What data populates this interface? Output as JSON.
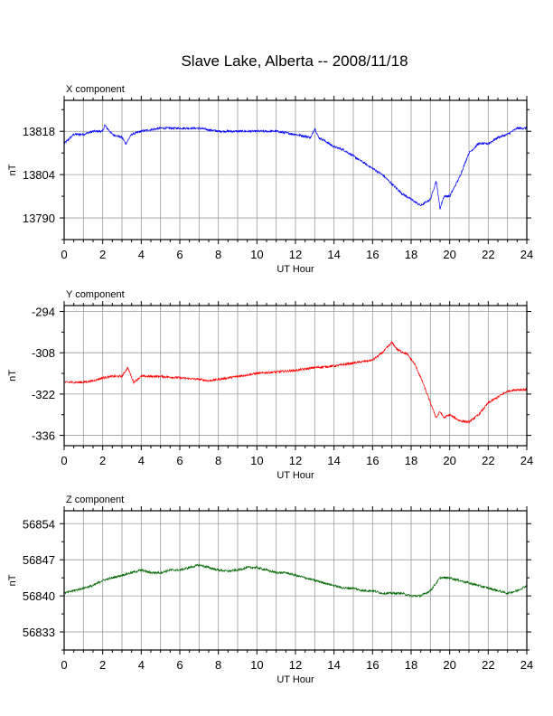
{
  "title": "Slave Lake, Alberta -- 2008/11/18",
  "chart_data": [
    {
      "type": "line",
      "panel_label": "X component",
      "xlabel": "UT Hour",
      "ylabel": "nT",
      "xlim": [
        0,
        24
      ],
      "ylim": [
        13783,
        13828
      ],
      "xticks": [
        0,
        2,
        4,
        6,
        8,
        10,
        12,
        14,
        16,
        18,
        20,
        22,
        24
      ],
      "yticks": [
        13790,
        13804,
        13818
      ],
      "grid": true,
      "color": "#0000ff",
      "series": [
        {
          "x": [
            0,
            0.5,
            1.0,
            1.5,
            2.0,
            2.1,
            2.5,
            3.0,
            3.2,
            3.5,
            4.0,
            5,
            6,
            7,
            8,
            9,
            10,
            11,
            12,
            12.8,
            13.0,
            13.2,
            13.5,
            14,
            14.5,
            15,
            15.5,
            16,
            16.5,
            17,
            17.5,
            18,
            18.5,
            19.0,
            19.3,
            19.5,
            19.7,
            20.0,
            20.5,
            21,
            21.5,
            22,
            22.5,
            23,
            23.5,
            24
          ],
          "y": [
            13814,
            13817,
            13817,
            13818,
            13818,
            13820,
            13817,
            13816,
            13814,
            13817,
            13818,
            13819,
            13819,
            13819,
            13818,
            13818,
            13818,
            13818,
            13817,
            13816,
            13819,
            13816,
            13815,
            13813,
            13812,
            13810,
            13808,
            13806,
            13804,
            13801,
            13798,
            13796,
            13794,
            13796,
            13802,
            13793,
            13797,
            13797,
            13803,
            13811,
            13814,
            13814,
            13816,
            13817,
            13819,
            13819
          ]
        }
      ]
    },
    {
      "type": "line",
      "panel_label": "Y component",
      "xlabel": "UT Hour",
      "ylabel": "nT",
      "xlim": [
        0,
        24
      ],
      "ylim": [
        -339.5,
        -292
      ],
      "xticks": [
        0,
        2,
        4,
        6,
        8,
        10,
        12,
        14,
        16,
        18,
        20,
        22,
        24
      ],
      "yticks": [
        -336,
        -322,
        -308,
        -294
      ],
      "grid": true,
      "color": "#ff0000",
      "series": [
        {
          "x": [
            0,
            0.5,
            1.0,
            1.5,
            2.0,
            2.5,
            3.0,
            3.3,
            3.6,
            3.8,
            4.0,
            5,
            6,
            7,
            7.5,
            8,
            9,
            10,
            11,
            12,
            13,
            14,
            14.5,
            15,
            15.5,
            16,
            16.5,
            17.0,
            17.3,
            17.8,
            18.2,
            18.6,
            19.0,
            19.3,
            19.5,
            19.7,
            20,
            20.5,
            21,
            21.5,
            22,
            22.5,
            23,
            23.5,
            24
          ],
          "y": [
            -318,
            -318,
            -318,
            -317.5,
            -316.5,
            -316,
            -316,
            -313,
            -318,
            -317,
            -316,
            -316,
            -316.5,
            -317,
            -317.5,
            -317,
            -316,
            -315,
            -314.5,
            -314,
            -313,
            -312.5,
            -312,
            -311.5,
            -311,
            -310.5,
            -308,
            -304.5,
            -307,
            -308.5,
            -312,
            -318,
            -325,
            -330,
            -328,
            -330,
            -329,
            -331,
            -331.5,
            -329,
            -325,
            -323,
            -321,
            -320.5,
            -320.5
          ]
        }
      ]
    },
    {
      "type": "line",
      "panel_label": "Z component",
      "xlabel": "UT Hour",
      "ylabel": "nT",
      "xlim": [
        0,
        24
      ],
      "ylim": [
        56829.5,
        56856.5
      ],
      "xticks": [
        0,
        2,
        4,
        6,
        8,
        10,
        12,
        14,
        16,
        18,
        20,
        22,
        24
      ],
      "yticks": [
        56833,
        56840,
        56847,
        56854
      ],
      "grid": true,
      "color": "#006600",
      "series": [
        {
          "x": [
            0,
            0.5,
            1.0,
            1.5,
            2.0,
            2.5,
            3.0,
            3.5,
            4.0,
            4.5,
            5,
            5.5,
            6,
            6.5,
            7,
            7.5,
            8,
            8.5,
            9,
            9.5,
            10,
            10.5,
            11,
            11.5,
            12,
            12.5,
            13,
            13.5,
            14,
            14.5,
            15,
            15.5,
            16,
            16.5,
            17,
            17.5,
            18,
            18.5,
            19,
            19.5,
            20,
            20.5,
            21,
            21.5,
            22,
            22.5,
            23,
            23.5,
            24
          ],
          "y": [
            56840.5,
            56841,
            56841.5,
            56842,
            56843,
            56843.5,
            56844,
            56844.5,
            56845,
            56844.5,
            56844.5,
            56845,
            56845,
            56845.5,
            56846,
            56845.5,
            56845,
            56844.8,
            56845,
            56845.5,
            56845.5,
            56845,
            56844.5,
            56844.5,
            56844,
            56843.5,
            56843,
            56842.5,
            56842,
            56841.5,
            56841.5,
            56841,
            56841,
            56840.5,
            56840.5,
            56840.5,
            56840,
            56840,
            56841,
            56843.5,
            56843.5,
            56843,
            56842.5,
            56842,
            56841.5,
            56841,
            56840.5,
            56841,
            56842
          ]
        }
      ]
    }
  ]
}
